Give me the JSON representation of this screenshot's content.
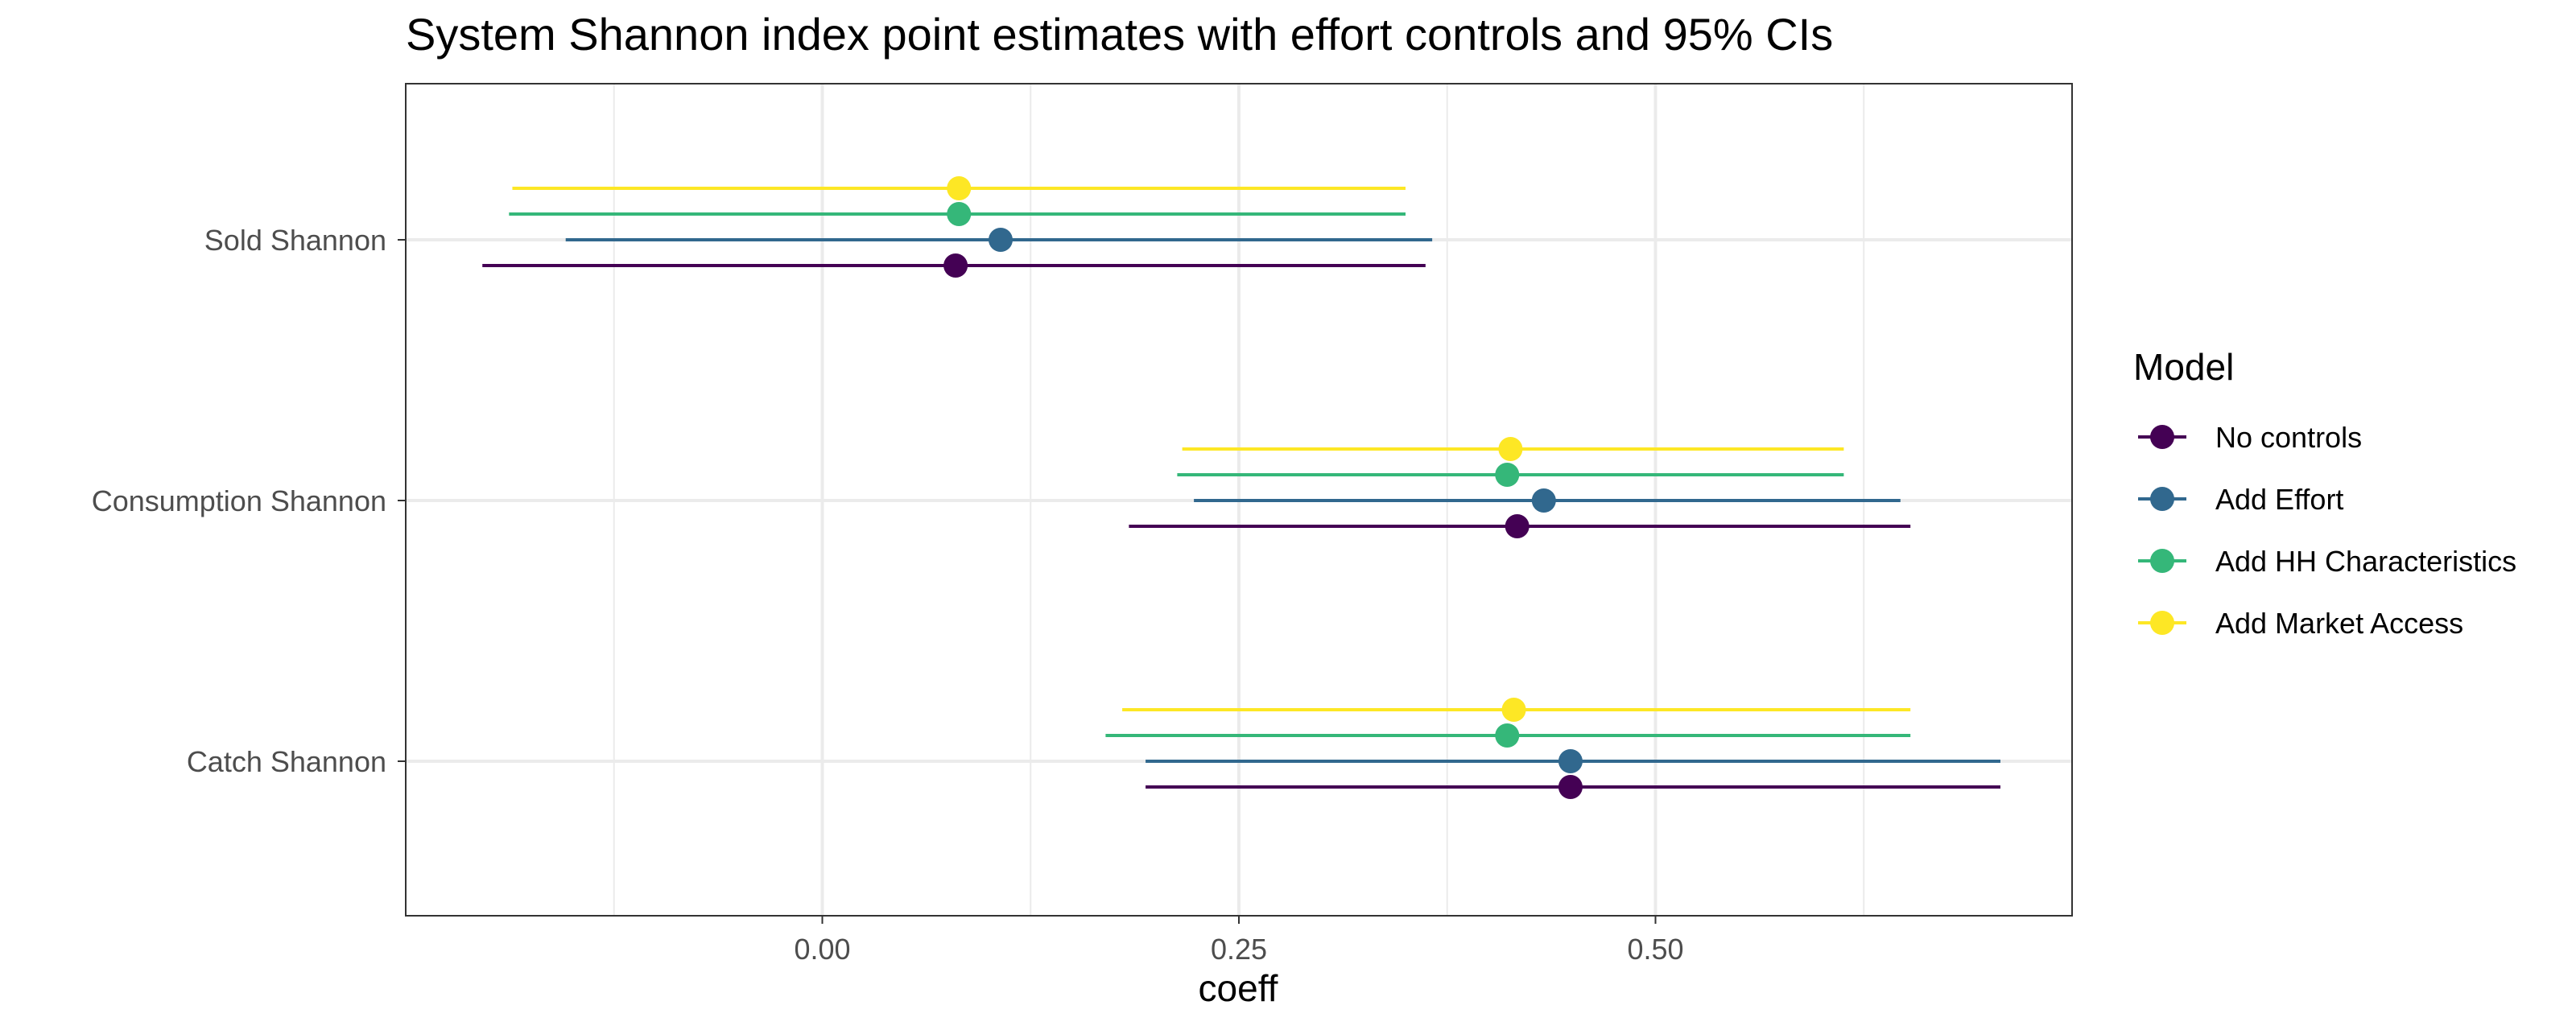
{
  "chart_data": {
    "type": "scatter",
    "subtype": "coefficient-plot-with-error-bars",
    "title": "System Shannon index point estimates with effort controls and 95% CIs",
    "xlabel": "coeff",
    "ylabel": "",
    "xlim": [
      -0.25,
      0.75
    ],
    "x_ticks": [
      0.0,
      0.25,
      0.5
    ],
    "x_tick_labels": [
      "0.00",
      "0.25",
      "0.50"
    ],
    "categories": [
      "Sold Shannon",
      "Consumption Shannon",
      "Catch Shannon"
    ],
    "grid": true,
    "legend": {
      "title": "Model",
      "position": "right"
    },
    "series": [
      {
        "name": "No controls",
        "color": "#440154",
        "estimates": [
          0.08,
          0.417,
          0.449
        ],
        "ci_low": [
          -0.204,
          0.184,
          0.194
        ],
        "ci_high": [
          0.362,
          0.653,
          0.707
        ]
      },
      {
        "name": "Add Effort",
        "color": "#31688E",
        "estimates": [
          0.107,
          0.433,
          0.449
        ],
        "ci_low": [
          -0.154,
          0.223,
          0.194
        ],
        "ci_high": [
          0.366,
          0.647,
          0.707
        ]
      },
      {
        "name": "Add HH Characteristics",
        "color": "#35B779",
        "estimates": [
          0.082,
          0.411,
          0.411
        ],
        "ci_low": [
          -0.188,
          0.213,
          0.17
        ],
        "ci_high": [
          0.35,
          0.613,
          0.653
        ]
      },
      {
        "name": "Add Market Access",
        "color": "#FDE725",
        "estimates": [
          0.082,
          0.413,
          0.415
        ],
        "ci_low": [
          -0.186,
          0.216,
          0.18
        ],
        "ci_high": [
          0.35,
          0.613,
          0.653
        ]
      }
    ]
  }
}
